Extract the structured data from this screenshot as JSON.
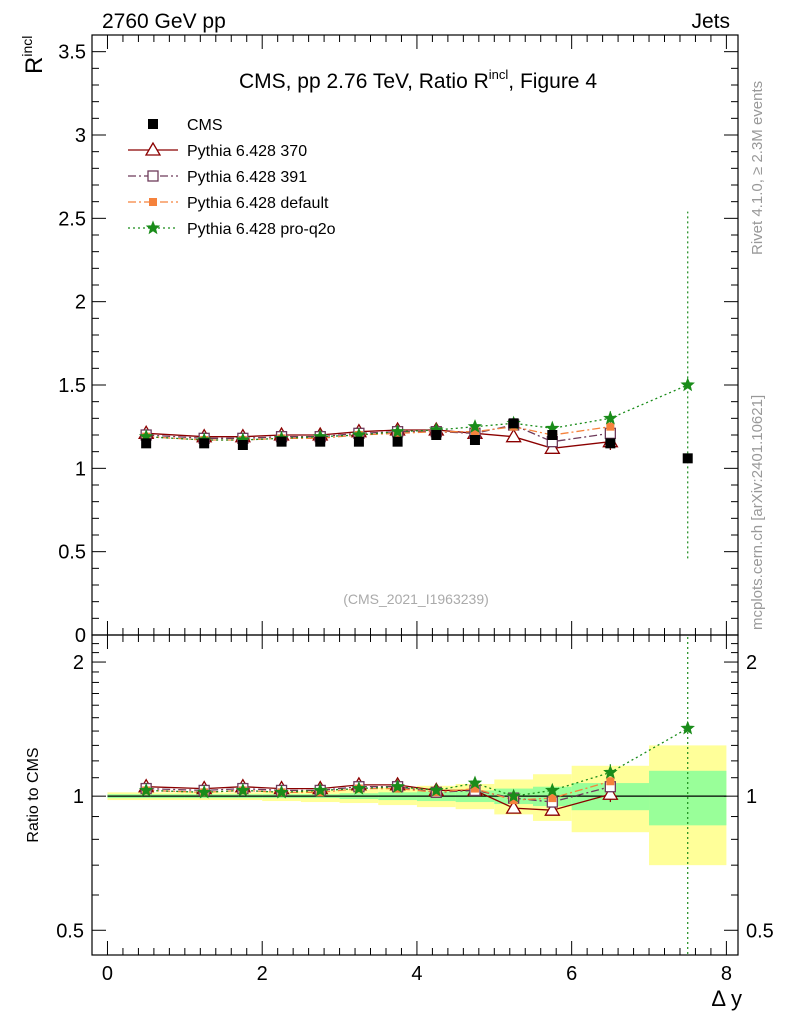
{
  "header": {
    "left": "2760 GeV pp",
    "right": "Jets"
  },
  "side_labels": {
    "rivet": "Rivet 4.1.0, ≥ 2.3M events",
    "mcplots": "mcplots.cern.ch [arXiv:2401.10621]"
  },
  "chart_data": [
    {
      "panel": "main",
      "type": "scatter",
      "title_main": "CMS, pp 2.76 TeV, Ratio R",
      "title_sup": "incl",
      "title_tail": ", Figure 4",
      "ylabel_main": "R",
      "ylabel_sup": "incl",
      "analysis_id": "(CMS_2021_I1963239)",
      "ylim": [
        0,
        3.6
      ],
      "yticks": [
        0,
        0.5,
        1,
        1.5,
        2,
        2.5,
        3,
        3.5
      ],
      "ytick_labels": [
        "0",
        "0.5",
        "1",
        "1.5",
        "2",
        "2.5",
        "3",
        "3.5"
      ],
      "xlim": [
        -0.2,
        8.15
      ],
      "legend_position": "top-left",
      "data": {
        "name": "CMS",
        "color": "#000000",
        "x": [
          0.5,
          1.25,
          1.75,
          2.25,
          2.75,
          3.25,
          3.75,
          4.25,
          4.75,
          5.25,
          5.75,
          6.5,
          7.5
        ],
        "y": [
          1.15,
          1.15,
          1.14,
          1.16,
          1.16,
          1.16,
          1.16,
          1.2,
          1.17,
          1.27,
          1.2,
          1.15,
          1.06
        ]
      },
      "series": [
        {
          "name": "Pythia 6.428 370",
          "color": "#8b0000",
          "marker": "triangle-open",
          "dash": "",
          "x": [
            0.5,
            1.25,
            1.75,
            2.25,
            2.75,
            3.25,
            3.75,
            4.25,
            4.75,
            5.25,
            5.75,
            6.5
          ],
          "y": [
            1.21,
            1.19,
            1.19,
            1.2,
            1.2,
            1.22,
            1.23,
            1.23,
            1.21,
            1.19,
            1.12,
            1.16
          ],
          "err": [
            0,
            0,
            0,
            0,
            0,
            0,
            0,
            0,
            0,
            0,
            0,
            0.05
          ]
        },
        {
          "name": "Pythia 6.428 391",
          "color": "#6e3b5b",
          "marker": "square-open",
          "dash": "8,3,2,3",
          "x": [
            0.5,
            1.25,
            1.75,
            2.25,
            2.75,
            3.25,
            3.75,
            4.25,
            4.75,
            5.25,
            5.75,
            6.5
          ],
          "y": [
            1.2,
            1.18,
            1.18,
            1.19,
            1.19,
            1.21,
            1.22,
            1.22,
            1.21,
            1.26,
            1.16,
            1.21
          ],
          "err": [
            0,
            0,
            0,
            0,
            0,
            0,
            0,
            0,
            0,
            0,
            0,
            0
          ]
        },
        {
          "name": "Pythia 6.428 default",
          "color": "#f5823c",
          "marker": "square-filled",
          "dash": "8,3,2,3",
          "x": [
            0.5,
            1.25,
            1.75,
            2.25,
            2.75,
            3.25,
            3.75,
            4.25,
            4.75,
            5.25,
            5.75,
            6.5
          ],
          "y": [
            1.19,
            1.17,
            1.17,
            1.18,
            1.18,
            1.2,
            1.21,
            1.22,
            1.22,
            1.25,
            1.2,
            1.25
          ],
          "err": [
            0,
            0,
            0,
            0,
            0,
            0,
            0,
            0,
            0,
            0,
            0,
            0
          ]
        },
        {
          "name": "Pythia 6.428 pro-q2o",
          "color": "#1a8c1a",
          "marker": "star",
          "dash": "2,3",
          "x": [
            0.5,
            1.25,
            1.75,
            2.25,
            2.75,
            3.25,
            3.75,
            4.25,
            4.75,
            5.25,
            5.75,
            6.5,
            7.5
          ],
          "y": [
            1.19,
            1.17,
            1.17,
            1.18,
            1.19,
            1.2,
            1.22,
            1.23,
            1.25,
            1.27,
            1.24,
            1.3,
            1.5
          ],
          "err": [
            0,
            0,
            0,
            0,
            0,
            0,
            0,
            0,
            0,
            0,
            0.03,
            0.06,
            1.04
          ]
        }
      ]
    },
    {
      "panel": "ratio",
      "type": "scatter",
      "ylabel": "Ratio to CMS",
      "xlabel": "Δ y",
      "ylim": [
        0.44,
        2.3
      ],
      "yscale": "log",
      "yticks": [
        0.5,
        1,
        2
      ],
      "ytick_labels": [
        "0.5",
        "1",
        "2"
      ],
      "xlim": [
        -0.2,
        8.15
      ],
      "xticks": [
        0,
        2,
        4,
        6,
        8
      ],
      "xtick_labels": [
        "0",
        "2",
        "4",
        "6",
        "8"
      ],
      "bands": {
        "edges": [
          0,
          1,
          1.5,
          2,
          2.5,
          3,
          3.5,
          4,
          4.5,
          5,
          5.5,
          6,
          7,
          8
        ],
        "inner": [
          0.01,
          0.01,
          0.01,
          0.01,
          0.01,
          0.015,
          0.02,
          0.025,
          0.03,
          0.04,
          0.05,
          0.07,
          0.14
        ],
        "outer": [
          0.02,
          0.02,
          0.02,
          0.025,
          0.03,
          0.035,
          0.045,
          0.055,
          0.065,
          0.09,
          0.12,
          0.17,
          0.3
        ]
      },
      "series": [
        {
          "name": "Pythia 6.428 370",
          "x": [
            0.5,
            1.25,
            1.75,
            2.25,
            2.75,
            3.25,
            3.75,
            4.25,
            4.75,
            5.25,
            5.75,
            6.5
          ],
          "y": [
            1.05,
            1.04,
            1.05,
            1.04,
            1.04,
            1.06,
            1.06,
            1.03,
            1.03,
            0.94,
            0.93,
            1.01
          ],
          "err": [
            0,
            0,
            0,
            0,
            0,
            0,
            0,
            0,
            0,
            0,
            0,
            0.04
          ]
        },
        {
          "name": "Pythia 6.428 391",
          "x": [
            0.5,
            1.25,
            1.75,
            2.25,
            2.75,
            3.25,
            3.75,
            4.25,
            4.75,
            5.25,
            5.75,
            6.5
          ],
          "y": [
            1.04,
            1.03,
            1.04,
            1.03,
            1.03,
            1.05,
            1.05,
            1.02,
            1.03,
            0.99,
            0.97,
            1.05
          ],
          "err": [
            0,
            0,
            0,
            0,
            0,
            0,
            0,
            0,
            0,
            0,
            0,
            0
          ]
        },
        {
          "name": "Pythia 6.428 default",
          "x": [
            0.5,
            1.25,
            1.75,
            2.25,
            2.75,
            3.25,
            3.75,
            4.25,
            4.75,
            5.25,
            5.75,
            6.5
          ],
          "y": [
            1.03,
            1.02,
            1.03,
            1.02,
            1.02,
            1.04,
            1.04,
            1.02,
            1.04,
            0.98,
            0.99,
            1.08
          ],
          "err": [
            0,
            0,
            0,
            0,
            0,
            0,
            0,
            0,
            0,
            0,
            0,
            0
          ]
        },
        {
          "name": "Pythia 6.428 pro-q2o",
          "x": [
            0.5,
            1.25,
            1.75,
            2.25,
            2.75,
            3.25,
            3.75,
            4.25,
            4.75,
            5.25,
            5.75,
            6.5,
            7.5
          ],
          "y": [
            1.03,
            1.02,
            1.03,
            1.02,
            1.03,
            1.04,
            1.05,
            1.03,
            1.07,
            1.0,
            1.03,
            1.13,
            1.42
          ],
          "err": [
            0,
            0,
            0,
            0,
            0,
            0,
            0,
            0,
            0,
            0,
            0.02,
            0.05,
            1.0
          ]
        }
      ]
    }
  ]
}
